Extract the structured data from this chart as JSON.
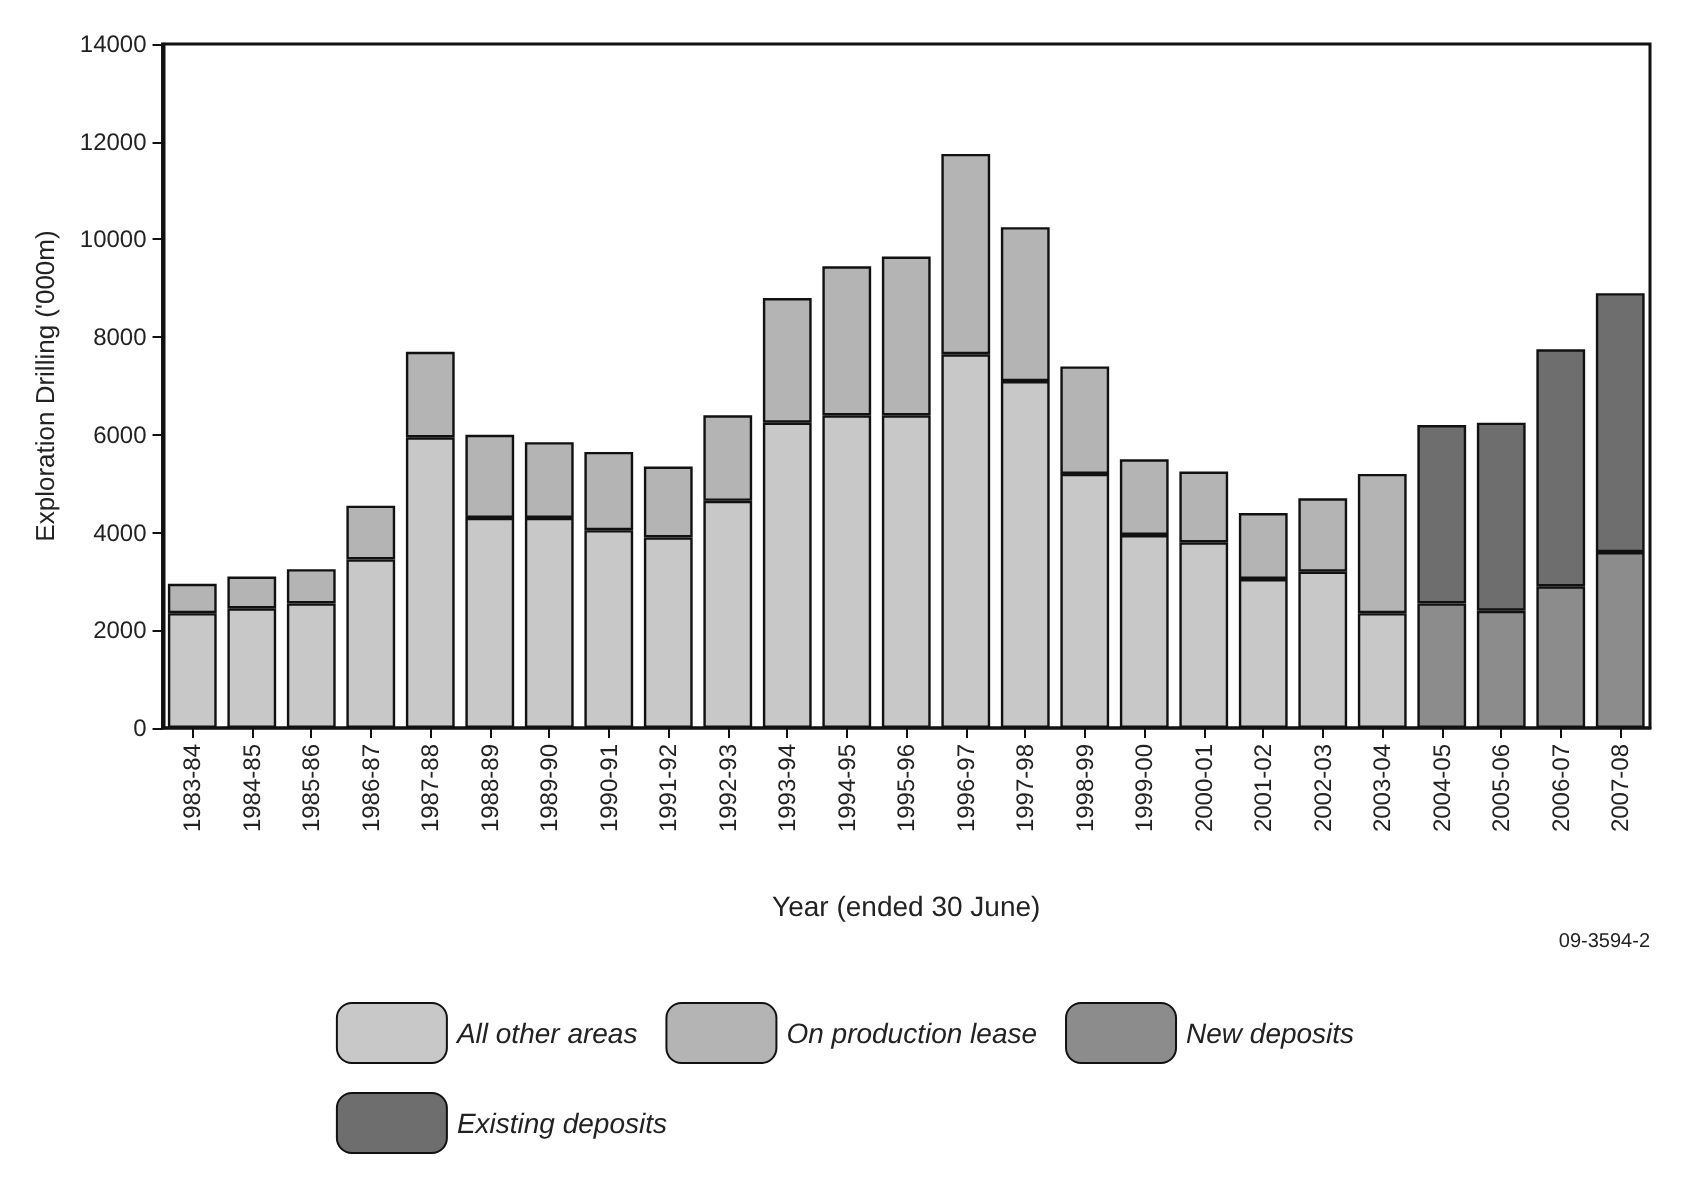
{
  "chart_data": {
    "type": "bar",
    "stacked": true,
    "xlabel": "Year (ended 30 June)",
    "ylabel": "Exploration Drilling ('000m)",
    "categories": [
      "1983-84",
      "1984-85",
      "1985-86",
      "1986-87",
      "1987-88",
      "1988-89",
      "1989-90",
      "1990-91",
      "1991-92",
      "1992-93",
      "1993-94",
      "1994-95",
      "1995-96",
      "1996-97",
      "1997-98",
      "1998-99",
      "1999-00",
      "2000-01",
      "2001-02",
      "2002-03",
      "2003-04",
      "2004-05",
      "2005-06",
      "2006-07",
      "2007-08"
    ],
    "series": [
      {
        "name": "All other areas",
        "color": "#c8c8c8",
        "values": [
          2350,
          2450,
          2550,
          3450,
          5950,
          4300,
          4300,
          4050,
          3900,
          4650,
          6250,
          6400,
          6400,
          7650,
          7100,
          5200,
          3950,
          3800,
          3050,
          3200,
          2350,
          null,
          null,
          null,
          null
        ]
      },
      {
        "name": "On production lease",
        "color": "#b4b4b4",
        "values": [
          600,
          650,
          700,
          1100,
          1750,
          1700,
          1550,
          1600,
          1450,
          1750,
          2550,
          3050,
          3250,
          4100,
          3150,
          2200,
          1550,
          1450,
          1350,
          1500,
          2850,
          null,
          null,
          null,
          null
        ]
      },
      {
        "name": "New deposits",
        "color": "#8c8c8c",
        "values": [
          null,
          null,
          null,
          null,
          null,
          null,
          null,
          null,
          null,
          null,
          null,
          null,
          null,
          null,
          null,
          null,
          null,
          null,
          null,
          null,
          null,
          2550,
          2400,
          2900,
          3600
        ]
      },
      {
        "name": "Existing deposits",
        "color": "#6e6e6e",
        "values": [
          null,
          null,
          null,
          null,
          null,
          null,
          null,
          null,
          null,
          null,
          null,
          null,
          null,
          null,
          null,
          null,
          null,
          null,
          null,
          null,
          null,
          3650,
          3850,
          4850,
          5300
        ]
      }
    ],
    "ylim": [
      0,
      14000
    ],
    "yticks": [
      0,
      2000,
      4000,
      6000,
      8000,
      10000,
      12000,
      14000
    ],
    "grid": false,
    "legend": "bottom",
    "annotations": [
      "09-3594-2"
    ]
  }
}
